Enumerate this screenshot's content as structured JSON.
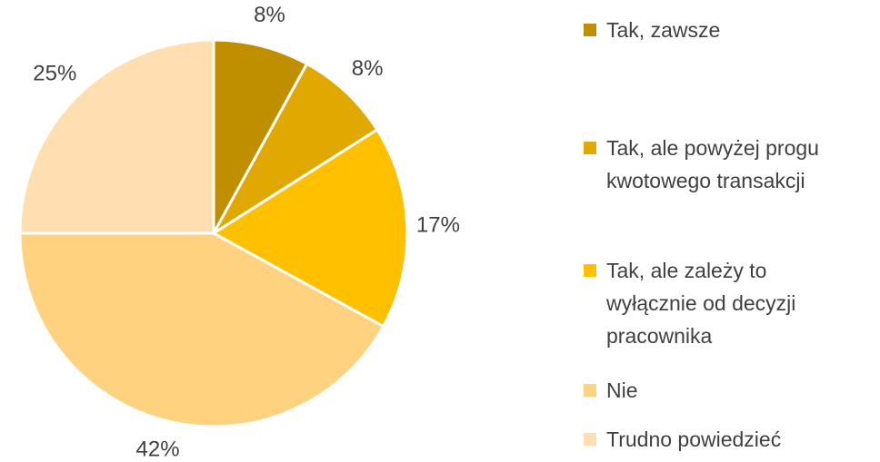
{
  "chart_data": {
    "type": "pie",
    "categories": [
      "Tak, zawsze",
      "Tak, ale powyżej progu kwotowego transakcji",
      "Tak, ale zależy to wyłącznie od decyzji pracownika",
      "Nie",
      "Trudno powiedzieć"
    ],
    "values": [
      8,
      8,
      17,
      42,
      25
    ],
    "value_labels": [
      "8%",
      "8%",
      "17%",
      "42%",
      "25%"
    ],
    "colors": [
      "#bf8f00",
      "#e0a800",
      "#ffc000",
      "#ffd27f",
      "#ffdfb1"
    ]
  }
}
